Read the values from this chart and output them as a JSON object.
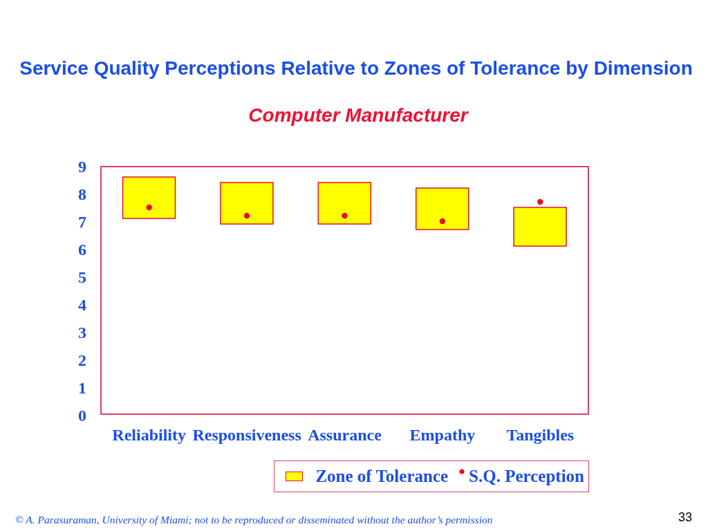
{
  "chart_data": {
    "type": "bar",
    "title": "Service Quality Perceptions Relative to Zones of Tolerance by Dimension",
    "subtitle": "Computer Manufacturer",
    "categories": [
      "Reliability",
      "Responsiveness",
      "Assurance",
      "Empathy",
      "Tangibles"
    ],
    "series": [
      {
        "name": "Zone of Tolerance",
        "color": "#ffff00",
        "base": [
          7.1,
          6.9,
          6.9,
          6.7,
          6.1
        ],
        "values": [
          1.5,
          1.5,
          1.5,
          1.5,
          1.4
        ]
      },
      {
        "name": "S.Q. Perception",
        "type": "scatter",
        "color": "#ee0a2a",
        "x": [
          "Reliability",
          "Responsiveness",
          "Assurance",
          "Empathy",
          "Tangibles"
        ],
        "values": [
          7.5,
          7.2,
          7.2,
          7.0,
          7.7
        ]
      }
    ],
    "ylim": [
      0,
      9
    ],
    "yticks": [
      0,
      1,
      2,
      3,
      4,
      5,
      6,
      7,
      8,
      9
    ],
    "legend": "bottom",
    "marker": "circle",
    "annotations": [
      "© A. Parasuraman, University of Miami; not to be reproduced or disseminated without the author’s permission",
      "33"
    ]
  }
}
